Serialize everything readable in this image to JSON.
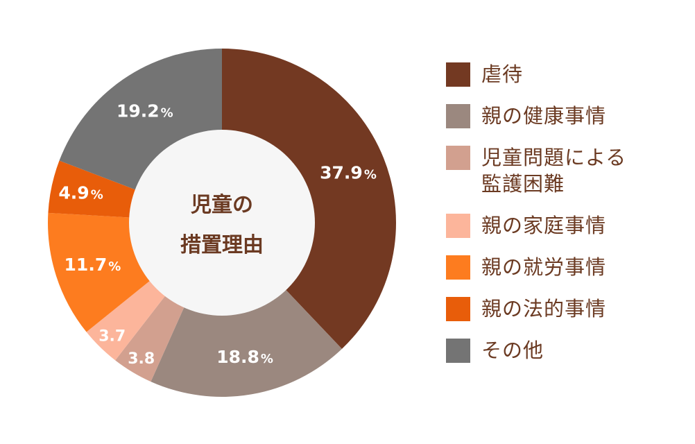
{
  "chart_data": {
    "type": "pie",
    "donut": true,
    "center_label": [
      "児童の",
      "措置理由"
    ],
    "legend_placement": "right",
    "unit": "%",
    "slices": [
      {
        "name": "虐待",
        "value": 37.9,
        "label": "37.9",
        "show_unit": true,
        "color": "#733922"
      },
      {
        "name": "親の健康事情",
        "value": 18.8,
        "label": "18.8",
        "show_unit": true,
        "color": "#9b887f"
      },
      {
        "name": "児童問題による監護困難",
        "legend_lines": [
          "児童問題による",
          "監護困難"
        ],
        "value": 3.8,
        "label": "3.8",
        "show_unit": false,
        "color": "#d2a08f"
      },
      {
        "name": "親の家庭事情",
        "value": 3.7,
        "label": "3.7",
        "show_unit": false,
        "color": "#fcb59b"
      },
      {
        "name": "親の就労事情",
        "value": 11.7,
        "label": "11.7",
        "show_unit": true,
        "color": "#fd7c1f"
      },
      {
        "name": "親の法的事情",
        "value": 4.9,
        "label": "4.9",
        "show_unit": true,
        "color": "#e85d0a"
      },
      {
        "name": "その他",
        "value": 19.2,
        "label": "19.2",
        "show_unit": true,
        "color": "#747474"
      }
    ]
  }
}
